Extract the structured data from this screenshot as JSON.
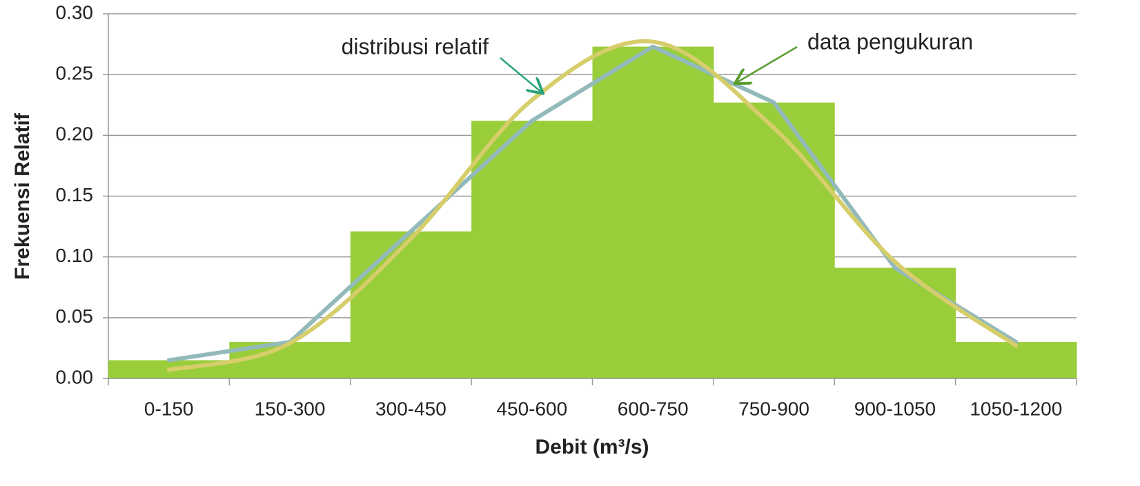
{
  "chart_data": {
    "type": "bar",
    "x_label": "Debit (m³/s)",
    "y_label": "Frekuensi Relatif",
    "categories": [
      "0-150",
      "150-300",
      "300-450",
      "450-600",
      "600-750",
      "750-900",
      "900-1050",
      "1050-1200"
    ],
    "values": [
      0.015,
      0.03,
      0.121,
      0.212,
      0.273,
      0.227,
      0.091,
      0.03
    ],
    "color": "#9acd3a",
    "series": [
      {
        "name": "data pengukuran",
        "type": "line",
        "color": "#93babb",
        "values": [
          0.015,
          0.03,
          0.121,
          0.212,
          0.273,
          0.227,
          0.091,
          0.03
        ]
      },
      {
        "name": "distribusi relatif",
        "type": "line",
        "color": "#d6cd6b",
        "values": [
          0.007,
          0.029,
          0.115,
          0.229,
          0.277,
          0.206,
          0.096,
          0.027
        ]
      }
    ],
    "ylim": [
      0,
      0.3
    ],
    "yticks": [
      {
        "value": 0,
        "label": "0.00"
      },
      {
        "value": 0.05,
        "label": "0.05"
      },
      {
        "value": 0.1,
        "label": "0.10"
      },
      {
        "value": 0.15,
        "label": "0.15"
      },
      {
        "value": 0.2,
        "label": "0.20"
      },
      {
        "value": 0.25,
        "label": "0.25"
      },
      {
        "value": 0.3,
        "label": "0.30"
      }
    ],
    "grid": true
  }
}
